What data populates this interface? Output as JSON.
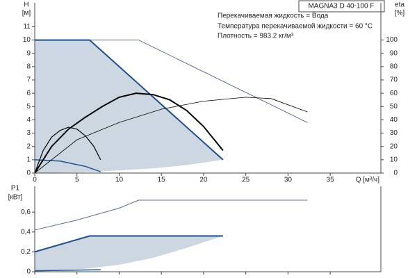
{
  "chart_data": [
    {
      "type": "line",
      "title": "MAGNA3 D 40-100 F",
      "annotations": [
        "Перекачиваемая жидкость = Вода",
        "Температура перекачиваемой жидкости = 60 °C",
        "Плотность = 983.2 кг/м³"
      ],
      "y_label": [
        "H",
        "[м]"
      ],
      "y2_label": [
        "eta",
        "[%]"
      ],
      "x_label": "Q [м³/ч]",
      "xlim": [
        0,
        41
      ],
      "xticks": [
        0,
        5,
        10,
        15,
        20,
        25,
        30,
        35
      ],
      "ylim": [
        0,
        12.8
      ],
      "yticks": [
        0,
        1,
        2,
        3,
        4,
        5,
        6,
        7,
        8,
        9,
        10,
        11
      ],
      "y2lim": [
        0,
        128
      ],
      "y2ticks": [
        0,
        10,
        20,
        30,
        40,
        50,
        60,
        70,
        80,
        90,
        100
      ],
      "series": [
        {
          "style": "area",
          "color": "#ccd7e2",
          "x": [
            0,
            6.5,
            22.3,
            18,
            14,
            10,
            6,
            0
          ],
          "values": [
            10,
            10,
            1,
            0.6,
            0.35,
            0.2,
            0.07,
            0
          ]
        },
        {
          "color": "#5a6a88",
          "width": 1,
          "x": [
            0,
            12.3,
            32.3
          ],
          "values": [
            10,
            10,
            3.8
          ]
        },
        {
          "color": "#1f4f8f",
          "width": 2,
          "x": [
            0,
            6.5,
            22.3
          ],
          "values": [
            10,
            10,
            1
          ]
        },
        {
          "color": "#1f4f8f",
          "width": 1.5,
          "x": [
            0,
            3,
            6,
            7.8
          ],
          "values": [
            1,
            0.9,
            0.5,
            0.1
          ]
        },
        {
          "color": "#000000",
          "width": 2,
          "axis": "y2",
          "x": [
            0,
            2,
            4,
            6,
            8,
            10,
            12,
            14,
            16,
            18,
            20,
            22.3
          ],
          "values": [
            0,
            20,
            33,
            42,
            50,
            57,
            60,
            59,
            55,
            47,
            35,
            17
          ]
        },
        {
          "color": "#000000",
          "width": 1.2,
          "axis": "y2",
          "x": [
            0,
            1,
            2,
            3,
            4,
            5,
            6,
            7,
            7.8
          ],
          "values": [
            0,
            17,
            27,
            32,
            34.5,
            33,
            28,
            20,
            10
          ]
        },
        {
          "color": "#000000",
          "width": 0.8,
          "axis": "y2",
          "x": [
            0,
            5,
            10,
            15,
            20,
            25,
            28,
            32.3
          ],
          "values": [
            0,
            25,
            38,
            48,
            54,
            57,
            56,
            46
          ]
        }
      ]
    },
    {
      "type": "line",
      "y_label": [
        "P1",
        "[кВт]"
      ],
      "xlim": [
        0,
        41
      ],
      "xticks": [
        0,
        5,
        10,
        15,
        20,
        25,
        30,
        35
      ],
      "ylim": [
        0,
        0.86
      ],
      "yticks": [
        0,
        {
          "value": 0.2,
          "label": "0,2"
        },
        {
          "value": 0.4,
          "label": "0,4"
        },
        {
          "value": 0.6,
          "label": "0,6"
        }
      ],
      "series": [
        {
          "style": "area",
          "color": "#ccd7e2",
          "x": [
            0,
            6.5,
            22.3,
            18,
            14,
            10,
            6,
            0
          ],
          "values": [
            0.2,
            0.36,
            0.36,
            0.24,
            0.14,
            0.07,
            0.03,
            0
          ]
        },
        {
          "color": "#5a6a88",
          "width": 1,
          "x": [
            0,
            5,
            10,
            12.3,
            32.3
          ],
          "values": [
            0.42,
            0.52,
            0.64,
            0.72,
            0.72
          ]
        },
        {
          "color": "#1f4f8f",
          "width": 2,
          "x": [
            0,
            6.5,
            22.3
          ],
          "values": [
            0.2,
            0.36,
            0.36
          ]
        },
        {
          "color": "#1f4f8f",
          "width": 1.5,
          "x": [
            0,
            7.8
          ],
          "values": [
            0.01,
            0.02
          ]
        }
      ]
    }
  ]
}
